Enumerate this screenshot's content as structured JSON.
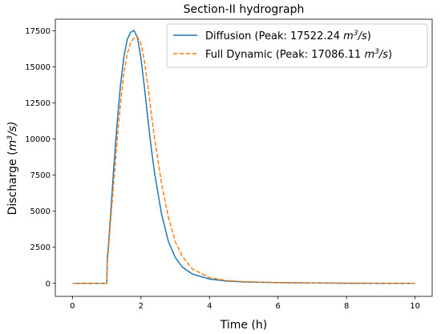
{
  "chart_data": {
    "type": "line",
    "title": "Section-II hydrograph",
    "xlabel": "Time (h)",
    "ylabel": "Discharge (m³/s)",
    "ylabel_main": "Discharge (",
    "ylabel_unit_base": "m",
    "ylabel_unit_sup": "3",
    "ylabel_unit_tail": "/s)",
    "xlim": [
      -0.5,
      10.5
    ],
    "ylim": [
      -900,
      18300
    ],
    "xticks": [
      0,
      2,
      4,
      6,
      8,
      10
    ],
    "yticks": [
      0,
      2500,
      5000,
      7500,
      10000,
      12500,
      15000,
      17500
    ],
    "grid": false,
    "legend_position": "top-right",
    "series": [
      {
        "name": "Diffusion (Peak: 17522.24 m³/s)",
        "legend_main": "Diffusion (Peak: 17522.24 ",
        "color": "#1f77b4",
        "dash": "solid",
        "x": [
          0,
          1.0,
          1.02,
          1.05,
          1.1,
          1.2,
          1.3,
          1.4,
          1.5,
          1.6,
          1.7,
          1.8,
          1.9,
          2.0,
          2.1,
          2.2,
          2.3,
          2.4,
          2.6,
          2.8,
          3.0,
          3.2,
          3.5,
          4.0,
          4.5,
          5.0,
          6.0,
          7.0,
          8.0,
          9.0,
          10.0
        ],
        "y": [
          0,
          0,
          1800,
          2600,
          4300,
          7800,
          11000,
          13700,
          15700,
          16900,
          17400,
          17522,
          17000,
          15600,
          13600,
          11400,
          9400,
          7600,
          4800,
          2900,
          1800,
          1150,
          650,
          300,
          160,
          100,
          50,
          25,
          12,
          6,
          0
        ]
      },
      {
        "name": "Full Dynamic  (Peak: 17086.11 m³/s)",
        "legend_main": "Full Dynamic  (Peak: 17086.11 ",
        "color": "#ff7f0e",
        "dash": "dashed",
        "x": [
          0,
          1.0,
          1.02,
          1.05,
          1.1,
          1.2,
          1.3,
          1.4,
          1.5,
          1.6,
          1.7,
          1.8,
          1.9,
          2.0,
          2.1,
          2.2,
          2.3,
          2.4,
          2.6,
          2.8,
          3.0,
          3.2,
          3.5,
          4.0,
          4.5,
          5.0,
          6.0,
          7.0,
          8.0,
          9.0,
          10.0
        ],
        "y": [
          0,
          0,
          1500,
          2300,
          3900,
          6800,
          9800,
          12400,
          14600,
          15900,
          16700,
          17000,
          17086,
          16600,
          15400,
          13700,
          11800,
          10000,
          6900,
          4600,
          2900,
          1900,
          1000,
          400,
          200,
          120,
          60,
          30,
          15,
          8,
          0
        ]
      }
    ]
  }
}
